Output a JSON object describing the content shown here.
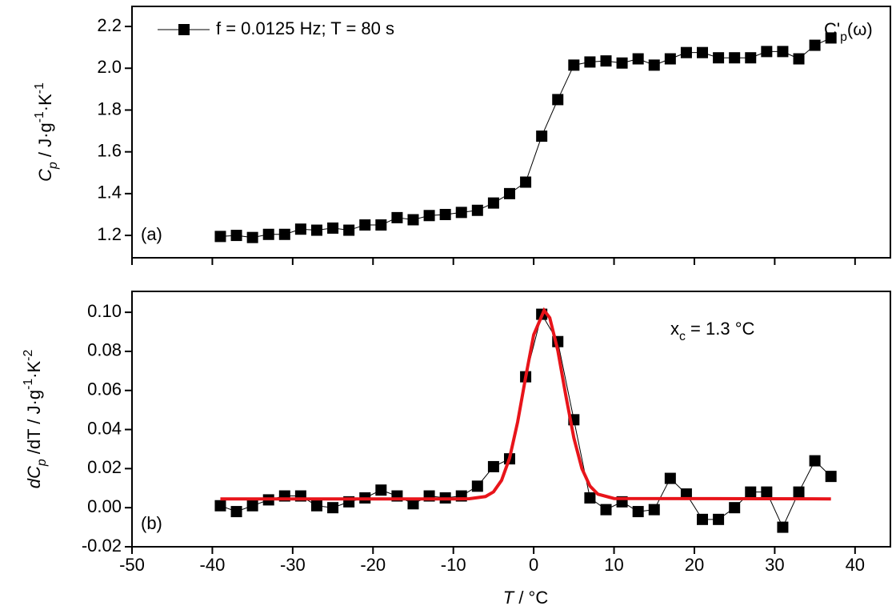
{
  "chart_data": [
    {
      "type": "line",
      "ylabel": [
        {
          "text": "C",
          "style": "italic"
        },
        {
          "text": "p",
          "style": "sub-italic"
        },
        {
          "text": " / J·g",
          "style": "normal"
        },
        {
          "text": "-1",
          "style": "sup"
        },
        {
          "text": "·K",
          "style": "normal"
        },
        {
          "text": "-1",
          "style": "sup"
        }
      ],
      "panel_label": "(a)",
      "annotation": [
        {
          "text": "C'",
          "style": "normal"
        },
        {
          "text": "p",
          "style": "sub"
        },
        {
          "text": "(ω)",
          "style": "normal"
        }
      ],
      "xlim": [
        -50,
        44.4
      ],
      "xticks": [
        -50,
        -40,
        -30,
        -20,
        -10,
        0,
        10,
        20,
        30,
        40
      ],
      "xtick_labels": false,
      "ylim": [
        1.093,
        2.296
      ],
      "yticks": [
        1.2,
        1.4,
        1.6,
        1.8,
        {
          "value": 2,
          "label": "2.0"
        },
        2.2
      ],
      "legend": "upper left",
      "series": [
        {
          "name": "f = 0.0125 Hz;  T = 80 s",
          "color": "#000000",
          "marker": "square",
          "x": [
            -39,
            -37,
            -35,
            -33,
            -31,
            -29,
            -27,
            -25,
            -23,
            -21,
            -19,
            -17,
            -15,
            -13,
            -11,
            -9,
            -7,
            -5,
            -3,
            -1,
            1,
            3,
            5,
            7,
            9,
            11,
            13,
            15,
            17,
            19,
            21,
            23,
            25,
            27,
            29,
            31,
            33,
            35,
            37
          ],
          "values": [
            1.195,
            1.2,
            1.19,
            1.205,
            1.205,
            1.23,
            1.225,
            1.235,
            1.225,
            1.25,
            1.25,
            1.285,
            1.275,
            1.295,
            1.3,
            1.31,
            1.32,
            1.355,
            1.4,
            1.455,
            1.675,
            1.85,
            2.015,
            2.03,
            2.035,
            2.025,
            2.045,
            2.015,
            2.045,
            2.075,
            2.075,
            2.05,
            2.05,
            2.05,
            2.08,
            2.08,
            2.045,
            2.11,
            2.145
          ]
        }
      ]
    },
    {
      "type": "line",
      "ylabel": [
        {
          "text": "dC",
          "style": "italic"
        },
        {
          "text": "p",
          "style": "sub-italic"
        },
        {
          "text": " /dT / J·g",
          "style": "normal"
        },
        {
          "text": "-1",
          "style": "sup"
        },
        {
          "text": "·K",
          "style": "normal"
        },
        {
          "text": "-2",
          "style": "sup"
        }
      ],
      "xlabel": [
        {
          "text": "T",
          "style": "italic"
        },
        {
          "text": " / °C",
          "style": "normal"
        }
      ],
      "panel_label": "(b)",
      "annotation": [
        {
          "text": "x",
          "style": "normal"
        },
        {
          "text": "c",
          "style": "sub"
        },
        {
          "text": " = 1.3 °C",
          "style": "normal"
        }
      ],
      "xlim": [
        -50,
        44.4
      ],
      "xticks": [
        -50,
        -40,
        -30,
        -20,
        -10,
        0,
        10,
        20,
        30,
        40
      ],
      "ylim": [
        -0.02,
        0.1107
      ],
      "yticks": [
        -0.02,
        {
          "value": 0,
          "label": "0.00"
        },
        0.02,
        0.04,
        0.06,
        0.08,
        {
          "value": 0.1,
          "label": "0.10"
        }
      ],
      "series": [
        {
          "color": "#000000",
          "marker": "square",
          "x": [
            -39,
            -37,
            -35,
            -33,
            -31,
            -29,
            -27,
            -25,
            -23,
            -21,
            -19,
            -17,
            -15,
            -13,
            -11,
            -9,
            -7,
            -5,
            -3,
            -1,
            1,
            3,
            5,
            7,
            9,
            11,
            13,
            15,
            17,
            19,
            21,
            23,
            25,
            27,
            29,
            31,
            33,
            35,
            37
          ],
          "values": [
            0.001,
            -0.002,
            0.001,
            0.004,
            0.006,
            0.006,
            0.001,
            0.0,
            0.003,
            0.005,
            0.009,
            0.006,
            0.002,
            0.006,
            0.005,
            0.006,
            0.011,
            0.021,
            0.025,
            0.067,
            0.099,
            0.085,
            0.045,
            0.005,
            -0.001,
            0.003,
            -0.002,
            -0.001,
            0.015,
            0.007,
            -0.006,
            -0.006,
            0.0,
            0.008,
            0.008,
            -0.01,
            0.008,
            0.024,
            0.016
          ]
        },
        {
          "color": "#e8141a",
          "marker": "none",
          "x": [
            -39,
            -10,
            -8,
            -6,
            -5,
            -4,
            -3,
            -2,
            -1,
            0,
            1.3,
            2,
            3,
            4,
            5,
            6,
            7,
            8,
            10,
            37
          ],
          "values": [
            0.0045,
            0.0045,
            0.0046,
            0.0057,
            0.0081,
            0.014,
            0.0254,
            0.0438,
            0.0668,
            0.0885,
            0.101,
            0.0972,
            0.0805,
            0.0574,
            0.0357,
            0.02,
            0.0111,
            0.0069,
            0.0047,
            0.0045
          ]
        }
      ]
    }
  ]
}
